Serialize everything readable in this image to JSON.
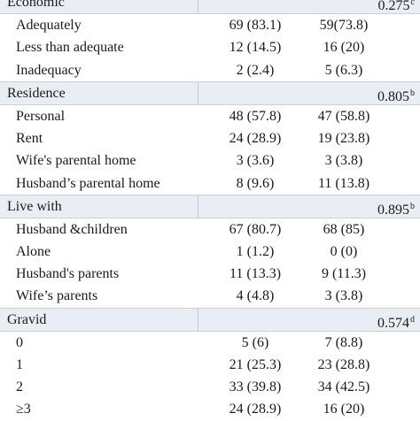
{
  "sections": [
    {
      "title": "Economic",
      "p": "0.275",
      "mark": "c",
      "rows": [
        {
          "label": "Adequately",
          "a": "69 (83.1)",
          "b": "59(73.8)"
        },
        {
          "label": "Less than adequate",
          "a": "12 (14.5)",
          "b": "16 (20)"
        },
        {
          "label": "Inadequacy",
          "a": "2 (2.4)",
          "b": "5 (6.3)"
        }
      ]
    },
    {
      "title": "Residence",
      "p": "0.805",
      "mark": "b",
      "rows": [
        {
          "label": "Personal",
          "a": "48 (57.8)",
          "b": "47 (58.8)"
        },
        {
          "label": "Rent",
          "a": "24 (28.9)",
          "b": "19 (23.8)"
        },
        {
          "label": "Wife's parental home",
          "a": "3 (3.6)",
          "b": "3 (3.8)"
        },
        {
          "label": "Husband’s parental home",
          "a": "8 (9.6)",
          "b": "11 (13.8)"
        }
      ]
    },
    {
      "title": "Live with",
      "p": "0.895",
      "mark": "b",
      "rows": [
        {
          "label": "Husband &children",
          "a": "67 (80.7)",
          "b": "68 (85)"
        },
        {
          "label": "Alone",
          "a": "1 (1.2)",
          "b": "0 (0)"
        },
        {
          "label": "Husband's parents",
          "a": "11 (13.3)",
          "b": "9 (11.3)"
        },
        {
          "label": "Wife’s parents",
          "a": "4 (4.8)",
          "b": "3 (3.8)"
        }
      ]
    },
    {
      "title": "Gravid",
      "p": "0.574",
      "mark": "d",
      "rows": [
        {
          "label": "0",
          "a": "5 (6)",
          "b": "7 (8.8)"
        },
        {
          "label": "1",
          "a": "21 (25.3)",
          "b": "23 (28.8)"
        },
        {
          "label": "2",
          "a": "33 (39.8)",
          "b": "34 (42.5)"
        },
        {
          "label": "≥3",
          "a": "24 (28.9)",
          "b": "16 (20)"
        }
      ]
    }
  ]
}
